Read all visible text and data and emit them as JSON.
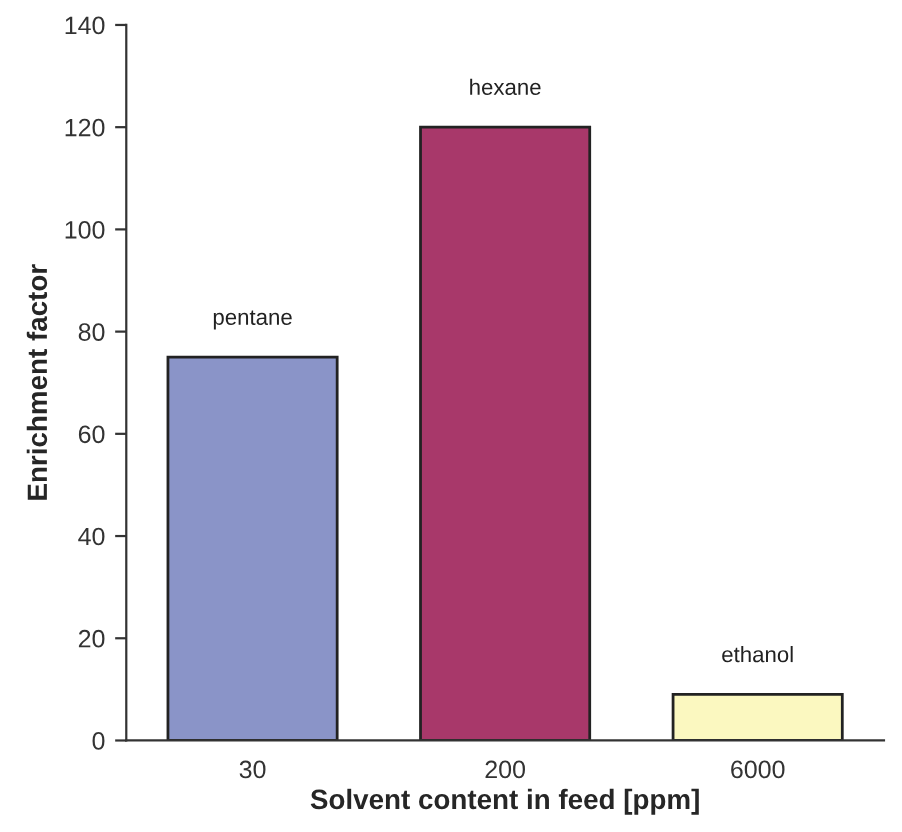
{
  "chart_data": {
    "type": "bar",
    "xlabel": "Solvent content in feed [ppm]",
    "ylabel": "Enrichment factor",
    "categories": [
      "30",
      "200",
      "6000"
    ],
    "values": [
      75,
      120,
      9
    ],
    "colors": [
      "#8a94c8",
      "#a8386a",
      "#fbf8c0"
    ],
    "ylim": [
      0,
      140
    ],
    "yticks": [
      0,
      20,
      40,
      60,
      80,
      100,
      120,
      140
    ],
    "grid": false,
    "annotations": [
      {
        "text": "pentane",
        "x": "30",
        "y": 75
      },
      {
        "text": "hexane",
        "x": "200",
        "y": 120
      },
      {
        "text": "ethanol",
        "x": "6000",
        "y": 9
      }
    ]
  }
}
